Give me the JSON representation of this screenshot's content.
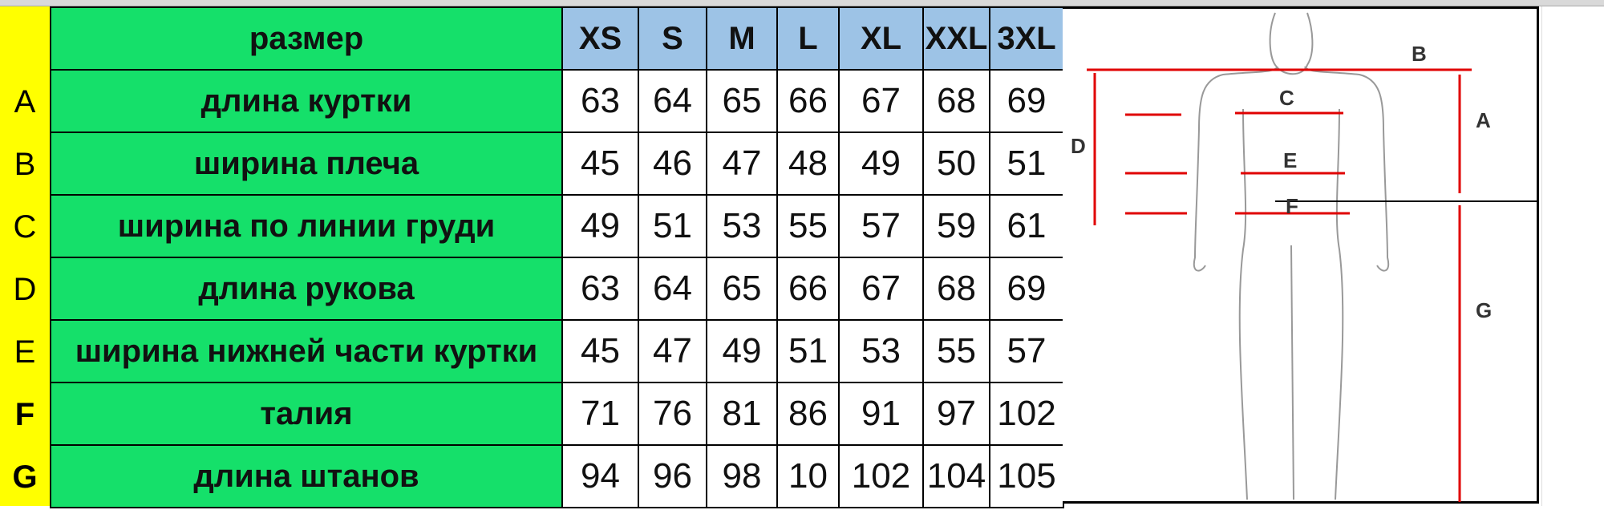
{
  "header_label": "размер",
  "sizes": [
    "XS",
    "S",
    "M",
    "L",
    "XL",
    "XXL",
    "3XL"
  ],
  "rows": [
    {
      "code": "A",
      "label": "длина куртки",
      "values": [
        "63",
        "64",
        "65",
        "66",
        "67",
        "68",
        "69"
      ]
    },
    {
      "code": "B",
      "label": "ширина плеча",
      "values": [
        "45",
        "46",
        "47",
        "48",
        "49",
        "50",
        "51"
      ]
    },
    {
      "code": "C",
      "label": "ширина по линии груди",
      "values": [
        "49",
        "51",
        "53",
        "55",
        "57",
        "59",
        "61"
      ]
    },
    {
      "code": "D",
      "label": "длина рукова",
      "values": [
        "63",
        "64",
        "65",
        "66",
        "67",
        "68",
        "69"
      ]
    },
    {
      "code": "E",
      "label": "ширина нижней части куртки",
      "values": [
        "45",
        "47",
        "49",
        "51",
        "53",
        "55",
        "57"
      ]
    },
    {
      "code": "F",
      "label": "талия",
      "values": [
        "71",
        "76",
        "81",
        "86",
        "91",
        "97",
        "102"
      ]
    },
    {
      "code": "G",
      "label": "длина штанов",
      "values": [
        "94",
        "96",
        "98",
        "10",
        "102",
        "104",
        "105"
      ]
    }
  ],
  "figure_labels": {
    "A": "A",
    "B": "B",
    "C": "C",
    "D": "D",
    "E": "E",
    "F": "F",
    "G": "G"
  },
  "colors": {
    "label_bg": "#15e06a",
    "header_bg": "#9dc3e6",
    "letter_bg": "#ffff00",
    "arrow": "#e00000"
  }
}
